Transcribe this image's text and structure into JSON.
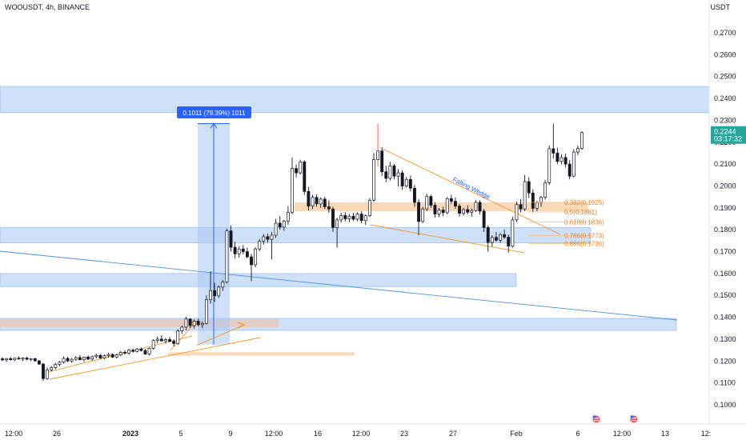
{
  "chart_data": {
    "type": "candlestick",
    "title": "WOOUSDT, 4h, BINANCE",
    "ylabel": "USDT",
    "ylim": [
      0.09,
      0.285
    ],
    "y_ticks": [
      "0.2700",
      "0.2600",
      "0.2500",
      "0.2400",
      "0.2300",
      "0.2200",
      "0.2100",
      "0.2000",
      "0.1900",
      "0.1800",
      "0.1700",
      "0.1600",
      "0.1500",
      "0.1400",
      "0.1300",
      "0.1200",
      "0.1100",
      "0.1000"
    ],
    "x_ticks": [
      {
        "label": "12:00",
        "bold": false
      },
      {
        "label": "26",
        "bold": false
      },
      {
        "label": "2023",
        "bold": true
      },
      {
        "label": "5",
        "bold": false
      },
      {
        "label": "9",
        "bold": false
      },
      {
        "label": "12:00",
        "bold": false
      },
      {
        "label": "16",
        "bold": false
      },
      {
        "label": "12:00",
        "bold": false
      },
      {
        "label": "23",
        "bold": false
      },
      {
        "label": "27",
        "bold": false
      },
      {
        "label": "Feb",
        "bold": false
      },
      {
        "label": "6",
        "bold": false
      },
      {
        "label": "12:00",
        "bold": false
      },
      {
        "label": "13",
        "bold": false
      },
      {
        "label": "12:",
        "bold": false
      }
    ],
    "last_price": "0.2244",
    "countdown": "03:17:32",
    "measure_label": "0.1011 (79.39%) 1011",
    "pattern_label": "Falling Wedge",
    "fib_levels": [
      {
        "label": "0.382(0.1925)",
        "value": 0.1925
      },
      {
        "label": "0.5(0.1881)",
        "value": 0.1881
      },
      {
        "label": "0.618(0.1836)",
        "value": 0.1836
      },
      {
        "label": "0.786(0.1773)",
        "value": 0.1773
      },
      {
        "label": "0.886(0.1736)",
        "value": 0.1736
      }
    ],
    "zones": [
      {
        "from": 0.2335,
        "to": 0.2455,
        "color": "#bcd4f6"
      },
      {
        "from": 0.174,
        "to": 0.181,
        "color": "#bcd4f6"
      },
      {
        "from": 0.154,
        "to": 0.16,
        "color": "#bcd4f6"
      },
      {
        "from": 0.134,
        "to": 0.1395,
        "color": "#bcd4f6"
      },
      {
        "from": 0.1355,
        "to": 0.1392,
        "color": "#e8c9b8"
      },
      {
        "from": 0.1884,
        "to": 0.1925,
        "color": "#f9d2ab"
      },
      {
        "from": 0.1225,
        "to": 0.124,
        "color": "#f9d2ab"
      }
    ],
    "candles": [
      {
        "o": 0.121,
        "h": 0.1218,
        "l": 0.12,
        "c": 0.1205
      },
      {
        "o": 0.1205,
        "h": 0.1214,
        "l": 0.1196,
        "c": 0.1211
      },
      {
        "o": 0.1211,
        "h": 0.122,
        "l": 0.1202,
        "c": 0.1206
      },
      {
        "o": 0.1206,
        "h": 0.1216,
        "l": 0.1199,
        "c": 0.1213
      },
      {
        "o": 0.1213,
        "h": 0.1222,
        "l": 0.1207,
        "c": 0.1209
      },
      {
        "o": 0.1209,
        "h": 0.1217,
        "l": 0.12,
        "c": 0.1214
      },
      {
        "o": 0.1214,
        "h": 0.122,
        "l": 0.1204,
        "c": 0.1208
      },
      {
        "o": 0.1208,
        "h": 0.1213,
        "l": 0.1199,
        "c": 0.1211
      },
      {
        "o": 0.1211,
        "h": 0.1215,
        "l": 0.1196,
        "c": 0.1201
      },
      {
        "o": 0.1201,
        "h": 0.1205,
        "l": 0.1183,
        "c": 0.1186
      },
      {
        "o": 0.1186,
        "h": 0.1192,
        "l": 0.111,
        "c": 0.112
      },
      {
        "o": 0.112,
        "h": 0.117,
        "l": 0.1115,
        "c": 0.116
      },
      {
        "o": 0.116,
        "h": 0.1178,
        "l": 0.1152,
        "c": 0.117
      },
      {
        "o": 0.117,
        "h": 0.1192,
        "l": 0.1162,
        "c": 0.1185
      },
      {
        "o": 0.1185,
        "h": 0.12,
        "l": 0.1176,
        "c": 0.1195
      },
      {
        "o": 0.1195,
        "h": 0.1221,
        "l": 0.1188,
        "c": 0.1212
      },
      {
        "o": 0.1212,
        "h": 0.122,
        "l": 0.1195,
        "c": 0.12
      },
      {
        "o": 0.12,
        "h": 0.1214,
        "l": 0.1192,
        "c": 0.1208
      },
      {
        "o": 0.1208,
        "h": 0.1222,
        "l": 0.12,
        "c": 0.1216
      },
      {
        "o": 0.1216,
        "h": 0.1228,
        "l": 0.1203,
        "c": 0.1206
      },
      {
        "o": 0.1206,
        "h": 0.122,
        "l": 0.1198,
        "c": 0.1218
      },
      {
        "o": 0.1218,
        "h": 0.1226,
        "l": 0.1204,
        "c": 0.1209
      },
      {
        "o": 0.1209,
        "h": 0.1224,
        "l": 0.1202,
        "c": 0.122
      },
      {
        "o": 0.122,
        "h": 0.1234,
        "l": 0.1212,
        "c": 0.1226
      },
      {
        "o": 0.1226,
        "h": 0.1232,
        "l": 0.121,
        "c": 0.1214
      },
      {
        "o": 0.1214,
        "h": 0.123,
        "l": 0.1208,
        "c": 0.1224
      },
      {
        "o": 0.1224,
        "h": 0.1238,
        "l": 0.1215,
        "c": 0.123
      },
      {
        "o": 0.123,
        "h": 0.1236,
        "l": 0.1214,
        "c": 0.1218
      },
      {
        "o": 0.1218,
        "h": 0.1233,
        "l": 0.1212,
        "c": 0.1228
      },
      {
        "o": 0.1228,
        "h": 0.1246,
        "l": 0.1221,
        "c": 0.124
      },
      {
        "o": 0.124,
        "h": 0.125,
        "l": 0.1229,
        "c": 0.1236
      },
      {
        "o": 0.1236,
        "h": 0.1255,
        "l": 0.123,
        "c": 0.125
      },
      {
        "o": 0.125,
        "h": 0.1258,
        "l": 0.1238,
        "c": 0.1244
      },
      {
        "o": 0.1244,
        "h": 0.126,
        "l": 0.1239,
        "c": 0.1255
      },
      {
        "o": 0.1255,
        "h": 0.1262,
        "l": 0.1243,
        "c": 0.1248
      },
      {
        "o": 0.1248,
        "h": 0.1256,
        "l": 0.1228,
        "c": 0.1232
      },
      {
        "o": 0.1232,
        "h": 0.1262,
        "l": 0.1225,
        "c": 0.1258
      },
      {
        "o": 0.1258,
        "h": 0.13,
        "l": 0.1252,
        "c": 0.1294
      },
      {
        "o": 0.1294,
        "h": 0.1312,
        "l": 0.128,
        "c": 0.13
      },
      {
        "o": 0.13,
        "h": 0.1318,
        "l": 0.1288,
        "c": 0.1292
      },
      {
        "o": 0.1292,
        "h": 0.1305,
        "l": 0.128,
        "c": 0.1298
      },
      {
        "o": 0.1298,
        "h": 0.131,
        "l": 0.1286,
        "c": 0.129
      },
      {
        "o": 0.129,
        "h": 0.13,
        "l": 0.1268,
        "c": 0.128
      },
      {
        "o": 0.128,
        "h": 0.1345,
        "l": 0.1275,
        "c": 0.1338
      },
      {
        "o": 0.1338,
        "h": 0.1362,
        "l": 0.1325,
        "c": 0.1355
      },
      {
        "o": 0.1355,
        "h": 0.1402,
        "l": 0.134,
        "c": 0.1392
      },
      {
        "o": 0.1392,
        "h": 0.1395,
        "l": 0.1352,
        "c": 0.1362
      },
      {
        "o": 0.1362,
        "h": 0.139,
        "l": 0.1348,
        "c": 0.1382
      },
      {
        "o": 0.1382,
        "h": 0.1393,
        "l": 0.1358,
        "c": 0.1366
      },
      {
        "o": 0.1366,
        "h": 0.138,
        "l": 0.135,
        "c": 0.1372
      },
      {
        "o": 0.1372,
        "h": 0.15,
        "l": 0.1368,
        "c": 0.148
      },
      {
        "o": 0.148,
        "h": 0.161,
        "l": 0.1462,
        "c": 0.1522
      },
      {
        "o": 0.1522,
        "h": 0.1558,
        "l": 0.147,
        "c": 0.1498
      },
      {
        "o": 0.1498,
        "h": 0.1545,
        "l": 0.1488,
        "c": 0.1538
      },
      {
        "o": 0.1538,
        "h": 0.157,
        "l": 0.152,
        "c": 0.1562
      },
      {
        "o": 0.1562,
        "h": 0.1805,
        "l": 0.1555,
        "c": 0.1795
      },
      {
        "o": 0.1795,
        "h": 0.182,
        "l": 0.17,
        "c": 0.172
      },
      {
        "o": 0.172,
        "h": 0.1745,
        "l": 0.1668,
        "c": 0.169
      },
      {
        "o": 0.169,
        "h": 0.1725,
        "l": 0.1672,
        "c": 0.1712
      },
      {
        "o": 0.1712,
        "h": 0.173,
        "l": 0.1688,
        "c": 0.17
      },
      {
        "o": 0.17,
        "h": 0.1718,
        "l": 0.167,
        "c": 0.1676
      },
      {
        "o": 0.1676,
        "h": 0.169,
        "l": 0.1565,
        "c": 0.164
      },
      {
        "o": 0.164,
        "h": 0.172,
        "l": 0.1628,
        "c": 0.1712
      },
      {
        "o": 0.1712,
        "h": 0.1758,
        "l": 0.1702,
        "c": 0.1748
      },
      {
        "o": 0.1748,
        "h": 0.178,
        "l": 0.1732,
        "c": 0.1768
      },
      {
        "o": 0.1768,
        "h": 0.1782,
        "l": 0.1742,
        "c": 0.1756
      },
      {
        "o": 0.1756,
        "h": 0.179,
        "l": 0.1664,
        "c": 0.1775
      },
      {
        "o": 0.1775,
        "h": 0.185,
        "l": 0.1762,
        "c": 0.183
      },
      {
        "o": 0.183,
        "h": 0.1862,
        "l": 0.18,
        "c": 0.1812
      },
      {
        "o": 0.1812,
        "h": 0.1845,
        "l": 0.1795,
        "c": 0.184
      },
      {
        "o": 0.184,
        "h": 0.1908,
        "l": 0.1822,
        "c": 0.188
      },
      {
        "o": 0.188,
        "h": 0.213,
        "l": 0.187,
        "c": 0.208
      },
      {
        "o": 0.208,
        "h": 0.2098,
        "l": 0.204,
        "c": 0.206
      },
      {
        "o": 0.206,
        "h": 0.212,
        "l": 0.2052,
        "c": 0.211
      },
      {
        "o": 0.211,
        "h": 0.2118,
        "l": 0.196,
        "c": 0.1975
      },
      {
        "o": 0.1975,
        "h": 0.1995,
        "l": 0.1888,
        "c": 0.1908
      },
      {
        "o": 0.1908,
        "h": 0.196,
        "l": 0.1895,
        "c": 0.1948
      },
      {
        "o": 0.1948,
        "h": 0.1962,
        "l": 0.1905,
        "c": 0.1918
      },
      {
        "o": 0.1918,
        "h": 0.1948,
        "l": 0.19,
        "c": 0.194
      },
      {
        "o": 0.194,
        "h": 0.195,
        "l": 0.1895,
        "c": 0.1905
      },
      {
        "o": 0.1905,
        "h": 0.1935,
        "l": 0.1878,
        "c": 0.1895
      },
      {
        "o": 0.1895,
        "h": 0.1905,
        "l": 0.179,
        "c": 0.181
      },
      {
        "o": 0.181,
        "h": 0.1855,
        "l": 0.1718,
        "c": 0.1845
      },
      {
        "o": 0.1845,
        "h": 0.1878,
        "l": 0.1832,
        "c": 0.1865
      },
      {
        "o": 0.1865,
        "h": 0.188,
        "l": 0.1838,
        "c": 0.185
      },
      {
        "o": 0.185,
        "h": 0.1872,
        "l": 0.1835,
        "c": 0.1862
      },
      {
        "o": 0.1862,
        "h": 0.1878,
        "l": 0.184,
        "c": 0.1848
      },
      {
        "o": 0.1848,
        "h": 0.188,
        "l": 0.1838,
        "c": 0.1872
      },
      {
        "o": 0.1872,
        "h": 0.1885,
        "l": 0.183,
        "c": 0.1842
      },
      {
        "o": 0.1842,
        "h": 0.187,
        "l": 0.1822,
        "c": 0.1864
      },
      {
        "o": 0.1864,
        "h": 0.1945,
        "l": 0.1858,
        "c": 0.1935
      },
      {
        "o": 0.1935,
        "h": 0.215,
        "l": 0.1928,
        "c": 0.212
      },
      {
        "o": 0.212,
        "h": 0.2285,
        "l": 0.209,
        "c": 0.216
      },
      {
        "o": 0.216,
        "h": 0.2178,
        "l": 0.2045,
        "c": 0.2065
      },
      {
        "o": 0.2065,
        "h": 0.2092,
        "l": 0.2018,
        "c": 0.2035
      },
      {
        "o": 0.2035,
        "h": 0.211,
        "l": 0.2025,
        "c": 0.2092
      },
      {
        "o": 0.2092,
        "h": 0.21,
        "l": 0.203,
        "c": 0.2045
      },
      {
        "o": 0.2045,
        "h": 0.2078,
        "l": 0.1998,
        "c": 0.206
      },
      {
        "o": 0.206,
        "h": 0.2072,
        "l": 0.1982,
        "c": 0.2
      },
      {
        "o": 0.2,
        "h": 0.2042,
        "l": 0.1992,
        "c": 0.203
      },
      {
        "o": 0.203,
        "h": 0.2048,
        "l": 0.1975,
        "c": 0.199
      },
      {
        "o": 0.199,
        "h": 0.2005,
        "l": 0.1905,
        "c": 0.1925
      },
      {
        "o": 0.1925,
        "h": 0.194,
        "l": 0.1775,
        "c": 0.1838
      },
      {
        "o": 0.1838,
        "h": 0.1905,
        "l": 0.183,
        "c": 0.1895
      },
      {
        "o": 0.1895,
        "h": 0.1965,
        "l": 0.1885,
        "c": 0.1952
      },
      {
        "o": 0.1952,
        "h": 0.196,
        "l": 0.19,
        "c": 0.1912
      },
      {
        "o": 0.1912,
        "h": 0.1925,
        "l": 0.1855,
        "c": 0.1872
      },
      {
        "o": 0.1872,
        "h": 0.19,
        "l": 0.1858,
        "c": 0.189
      },
      {
        "o": 0.189,
        "h": 0.1905,
        "l": 0.1862,
        "c": 0.1878
      },
      {
        "o": 0.1878,
        "h": 0.195,
        "l": 0.187,
        "c": 0.1942
      },
      {
        "o": 0.1942,
        "h": 0.196,
        "l": 0.1918,
        "c": 0.193
      },
      {
        "o": 0.193,
        "h": 0.1948,
        "l": 0.1895,
        "c": 0.1908
      },
      {
        "o": 0.1908,
        "h": 0.1918,
        "l": 0.186,
        "c": 0.1875
      },
      {
        "o": 0.1875,
        "h": 0.19,
        "l": 0.1865,
        "c": 0.1892
      },
      {
        "o": 0.1892,
        "h": 0.1912,
        "l": 0.187,
        "c": 0.188
      },
      {
        "o": 0.188,
        "h": 0.1898,
        "l": 0.186,
        "c": 0.1888
      },
      {
        "o": 0.1888,
        "h": 0.1935,
        "l": 0.1882,
        "c": 0.1925
      },
      {
        "o": 0.1925,
        "h": 0.1935,
        "l": 0.187,
        "c": 0.1885
      },
      {
        "o": 0.1885,
        "h": 0.1895,
        "l": 0.179,
        "c": 0.181
      },
      {
        "o": 0.181,
        "h": 0.182,
        "l": 0.17,
        "c": 0.1742
      },
      {
        "o": 0.1742,
        "h": 0.1775,
        "l": 0.1722,
        "c": 0.1765
      },
      {
        "o": 0.1765,
        "h": 0.179,
        "l": 0.1745,
        "c": 0.1752
      },
      {
        "o": 0.1752,
        "h": 0.1785,
        "l": 0.174,
        "c": 0.1778
      },
      {
        "o": 0.1778,
        "h": 0.18,
        "l": 0.1758,
        "c": 0.1766
      },
      {
        "o": 0.1766,
        "h": 0.1778,
        "l": 0.1695,
        "c": 0.1725
      },
      {
        "o": 0.1725,
        "h": 0.186,
        "l": 0.1718,
        "c": 0.1845
      },
      {
        "o": 0.1845,
        "h": 0.1928,
        "l": 0.1835,
        "c": 0.1915
      },
      {
        "o": 0.1915,
        "h": 0.194,
        "l": 0.188,
        "c": 0.1895
      },
      {
        "o": 0.1895,
        "h": 0.205,
        "l": 0.1885,
        "c": 0.202
      },
      {
        "o": 0.202,
        "h": 0.204,
        "l": 0.1945,
        "c": 0.1968
      },
      {
        "o": 0.1968,
        "h": 0.1985,
        "l": 0.188,
        "c": 0.1898
      },
      {
        "o": 0.1898,
        "h": 0.1932,
        "l": 0.1885,
        "c": 0.1925
      },
      {
        "o": 0.1925,
        "h": 0.1955,
        "l": 0.1905,
        "c": 0.1948
      },
      {
        "o": 0.1948,
        "h": 0.2028,
        "l": 0.1938,
        "c": 0.2015
      },
      {
        "o": 0.2015,
        "h": 0.2185,
        "l": 0.2005,
        "c": 0.217
      },
      {
        "o": 0.217,
        "h": 0.2285,
        "l": 0.2125,
        "c": 0.215
      },
      {
        "o": 0.215,
        "h": 0.2175,
        "l": 0.21,
        "c": 0.2112
      },
      {
        "o": 0.2112,
        "h": 0.2145,
        "l": 0.2098,
        "c": 0.213
      },
      {
        "o": 0.213,
        "h": 0.2148,
        "l": 0.2085,
        "c": 0.21
      },
      {
        "o": 0.21,
        "h": 0.2118,
        "l": 0.203,
        "c": 0.2045
      },
      {
        "o": 0.2045,
        "h": 0.2168,
        "l": 0.204,
        "c": 0.2155
      },
      {
        "o": 0.2155,
        "h": 0.2185,
        "l": 0.214,
        "c": 0.2172
      },
      {
        "o": 0.2172,
        "h": 0.225,
        "l": 0.2165,
        "c": 0.2244
      }
    ]
  }
}
